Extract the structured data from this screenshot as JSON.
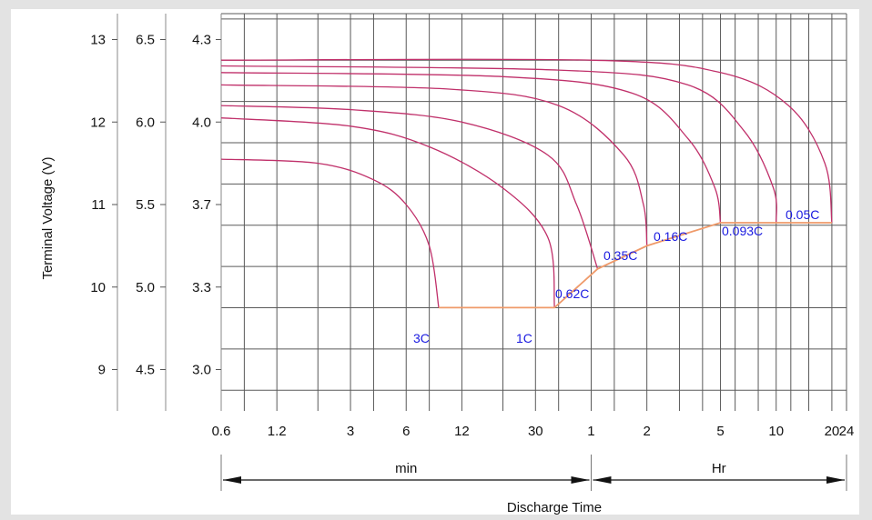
{
  "chart_data": {
    "type": "line",
    "title": "",
    "xlabel": "Discharge Time",
    "ylabel": "Terminal Voltage  (V)",
    "x_scale": "log",
    "x_unit_note": "x values in minutes",
    "x_range_min": [
      0.6,
      1440
    ],
    "x_tick_labels": [
      "0.6",
      "1.2",
      "3",
      "6",
      "12",
      "30",
      "1",
      "2",
      "5",
      "10",
      "20",
      "24"
    ],
    "x_tick_values_min": [
      0.6,
      1.2,
      3,
      6,
      12,
      30,
      60,
      120,
      300,
      600,
      1200,
      1440
    ],
    "time_bands": [
      {
        "label": "min",
        "from_min": 0.6,
        "to_min": 60
      },
      {
        "label": "Hr",
        "from_min": 60,
        "to_min": 1440
      }
    ],
    "y_axes": [
      {
        "ticks": [
          "13",
          "12",
          "11",
          "10",
          "9"
        ],
        "values": [
          13,
          12,
          11,
          10,
          9
        ]
      },
      {
        "ticks": [
          "6.5",
          "6.0",
          "5.5",
          "5.0",
          "4.5"
        ],
        "values": [
          6.5,
          6.0,
          5.5,
          5.0,
          4.5
        ]
      },
      {
        "ticks": [
          "4.3",
          "4.0",
          "3.7",
          "3.3",
          "3.0"
        ],
        "values": [
          4.3,
          4.0,
          3.7,
          3.3,
          3.0
        ]
      }
    ],
    "ylim_12v": [
      8.5,
      13.3
    ],
    "grid": true,
    "series": [
      {
        "name": "3C",
        "points": [
          [
            0.6,
            11.55
          ],
          [
            2,
            11.5
          ],
          [
            4,
            11.3
          ],
          [
            6,
            11.0
          ],
          [
            8,
            10.5
          ],
          [
            9,
            9.75
          ]
        ]
      },
      {
        "name": "1C",
        "points": [
          [
            0.6,
            12.05
          ],
          [
            3,
            11.95
          ],
          [
            8,
            11.7
          ],
          [
            20,
            11.2
          ],
          [
            35,
            10.6
          ],
          [
            38,
            9.75
          ]
        ]
      },
      {
        "name": "0.62C",
        "points": [
          [
            0.6,
            12.2
          ],
          [
            3,
            12.15
          ],
          [
            12,
            12.0
          ],
          [
            35,
            11.6
          ],
          [
            50,
            11.0
          ],
          [
            65,
            10.22
          ]
        ]
      },
      {
        "name": "0.35C",
        "points": [
          [
            0.6,
            12.45
          ],
          [
            10,
            12.4
          ],
          [
            40,
            12.2
          ],
          [
            90,
            11.6
          ],
          [
            115,
            11.0
          ],
          [
            120,
            10.5
          ]
        ]
      },
      {
        "name": "0.16C",
        "points": [
          [
            0.6,
            12.6
          ],
          [
            20,
            12.55
          ],
          [
            100,
            12.35
          ],
          [
            200,
            11.8
          ],
          [
            280,
            11.2
          ],
          [
            300,
            10.78
          ]
        ]
      },
      {
        "name": "0.093C",
        "points": [
          [
            0.6,
            12.68
          ],
          [
            40,
            12.63
          ],
          [
            200,
            12.45
          ],
          [
            400,
            11.9
          ],
          [
            580,
            11.2
          ],
          [
            600,
            10.78
          ]
        ]
      },
      {
        "name": "0.05C",
        "points": [
          [
            0.6,
            12.75
          ],
          [
            60,
            12.75
          ],
          [
            300,
            12.6
          ],
          [
            700,
            12.2
          ],
          [
            1100,
            11.5
          ],
          [
            1200,
            10.78
          ]
        ]
      }
    ],
    "cutoff_line": {
      "name": "",
      "points": [
        [
          9,
          9.75
        ],
        [
          38,
          9.75
        ],
        [
          65,
          10.22
        ],
        [
          120,
          10.5
        ],
        [
          300,
          10.78
        ],
        [
          1200,
          10.78
        ]
      ]
    },
    "colors": {
      "curves": "#c0306a",
      "cutoff": "#ef9a6a",
      "labels": "#1a1ae0",
      "grid": "#5a5a5a"
    }
  }
}
